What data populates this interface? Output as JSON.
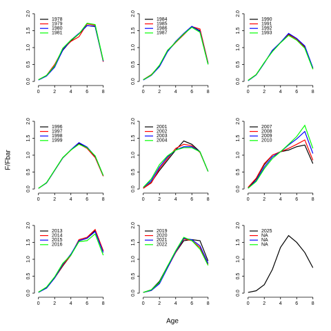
{
  "figure": {
    "xlabel": "Age",
    "ylabel": "F/Fbar"
  },
  "chart_data": [
    {
      "type": "line",
      "x": [
        0,
        1,
        2,
        3,
        4,
        5,
        6,
        7,
        8
      ],
      "xlim": [
        -0.32,
        8.32
      ],
      "ylim": [
        -0.08,
        2.08
      ],
      "xticks": [
        0,
        2,
        4,
        6,
        8
      ],
      "yticks": [
        {
          "value": 0,
          "label": "0.0"
        },
        {
          "value": 0.5,
          "label": "0.5"
        },
        {
          "value": 1,
          "label": "1.0"
        },
        {
          "value": 1.5,
          "label": "1.5"
        },
        {
          "value": 2,
          "label": "2.0"
        }
      ],
      "series": [
        {
          "name": "1978",
          "color": "#000000",
          "values": [
            0.05,
            0.17,
            0.45,
            0.92,
            1.2,
            1.4,
            1.65,
            1.62,
            0.6
          ]
        },
        {
          "name": "1979",
          "color": "#ff0000",
          "values": [
            0.05,
            0.18,
            0.5,
            0.95,
            1.18,
            1.32,
            1.7,
            1.66,
            0.58
          ]
        },
        {
          "name": "1980",
          "color": "#0000ff",
          "values": [
            0.04,
            0.16,
            0.42,
            0.93,
            1.22,
            1.42,
            1.65,
            1.63,
            0.6
          ]
        },
        {
          "name": "1981",
          "color": "#00ff00",
          "values": [
            0.05,
            0.18,
            0.46,
            0.98,
            1.22,
            1.4,
            1.72,
            1.68,
            0.62
          ]
        }
      ]
    },
    {
      "type": "line",
      "x": [
        0,
        1,
        2,
        3,
        4,
        5,
        6,
        7,
        8
      ],
      "xlim": [
        -0.32,
        8.32
      ],
      "ylim": [
        -0.08,
        2.08
      ],
      "xticks": [
        0,
        2,
        4,
        6,
        8
      ],
      "yticks": [
        {
          "value": 0,
          "label": "0.0"
        },
        {
          "value": 0.5,
          "label": "0.5"
        },
        {
          "value": 1,
          "label": "1.0"
        },
        {
          "value": 1.5,
          "label": "1.5"
        },
        {
          "value": 2,
          "label": "2.0"
        }
      ],
      "series": [
        {
          "name": "1984",
          "color": "#000000",
          "values": [
            0.05,
            0.2,
            0.45,
            0.9,
            1.15,
            1.4,
            1.62,
            1.5,
            0.52
          ]
        },
        {
          "name": "1985",
          "color": "#ff0000",
          "values": [
            0.05,
            0.2,
            0.47,
            0.92,
            1.15,
            1.38,
            1.62,
            1.55,
            0.55
          ]
        },
        {
          "name": "1986",
          "color": "#0000ff",
          "values": [
            0.04,
            0.18,
            0.44,
            0.88,
            1.18,
            1.42,
            1.63,
            1.48,
            0.52
          ]
        },
        {
          "name": "1987",
          "color": "#00ff00",
          "values": [
            0.05,
            0.19,
            0.48,
            0.92,
            1.16,
            1.4,
            1.6,
            1.45,
            0.5
          ]
        }
      ]
    },
    {
      "type": "line",
      "x": [
        0,
        1,
        2,
        3,
        4,
        5,
        6,
        7,
        8
      ],
      "xlim": [
        -0.32,
        8.32
      ],
      "ylim": [
        -0.08,
        2.08
      ],
      "xticks": [
        0,
        2,
        4,
        6,
        8
      ],
      "yticks": [
        {
          "value": 0,
          "label": "0.0"
        },
        {
          "value": 0.5,
          "label": "0.5"
        },
        {
          "value": 1,
          "label": "1.0"
        },
        {
          "value": 1.5,
          "label": "1.5"
        },
        {
          "value": 2,
          "label": "2.0"
        }
      ],
      "series": [
        {
          "name": "1990",
          "color": "#000000",
          "values": [
            0.03,
            0.2,
            0.55,
            0.9,
            1.15,
            1.4,
            1.25,
            1.02,
            0.38
          ]
        },
        {
          "name": "1991",
          "color": "#ff0000",
          "values": [
            0.03,
            0.2,
            0.55,
            0.9,
            1.15,
            1.38,
            1.25,
            1.0,
            0.38
          ]
        },
        {
          "name": "1992",
          "color": "#0000ff",
          "values": [
            0.02,
            0.19,
            0.54,
            0.92,
            1.15,
            1.42,
            1.27,
            1.05,
            0.4
          ]
        },
        {
          "name": "1993",
          "color": "#00ff00",
          "values": [
            0.03,
            0.2,
            0.56,
            0.88,
            1.14,
            1.36,
            1.22,
            0.98,
            0.36
          ]
        }
      ]
    },
    {
      "type": "line",
      "x": [
        0,
        1,
        2,
        3,
        4,
        5,
        6,
        7,
        8
      ],
      "xlim": [
        -0.32,
        8.32
      ],
      "ylim": [
        -0.08,
        2.08
      ],
      "xticks": [
        0,
        2,
        4,
        6,
        8
      ],
      "yticks": [
        {
          "value": 0,
          "label": "0.0"
        },
        {
          "value": 0.5,
          "label": "0.5"
        },
        {
          "value": 1,
          "label": "1.0"
        },
        {
          "value": 1.5,
          "label": "1.5"
        },
        {
          "value": 2,
          "label": "2.0"
        }
      ],
      "series": [
        {
          "name": "1996",
          "color": "#000000",
          "values": [
            0.02,
            0.18,
            0.55,
            0.92,
            1.15,
            1.35,
            1.22,
            0.95,
            0.38
          ]
        },
        {
          "name": "1997",
          "color": "#ff0000",
          "values": [
            0.02,
            0.18,
            0.55,
            0.92,
            1.15,
            1.33,
            1.2,
            0.93,
            0.38
          ]
        },
        {
          "name": "1998",
          "color": "#0000ff",
          "values": [
            0.02,
            0.18,
            0.55,
            0.92,
            1.16,
            1.37,
            1.24,
            0.97,
            0.4
          ]
        },
        {
          "name": "1999",
          "color": "#00ff00",
          "values": [
            0.02,
            0.19,
            0.56,
            0.93,
            1.15,
            1.32,
            1.22,
            0.98,
            0.4
          ]
        }
      ]
    },
    {
      "type": "line",
      "x": [
        0,
        1,
        2,
        3,
        4,
        5,
        6,
        7,
        8
      ],
      "xlim": [
        -0.32,
        8.32
      ],
      "ylim": [
        -0.08,
        2.08
      ],
      "xticks": [
        0,
        2,
        4,
        6,
        8
      ],
      "yticks": [
        {
          "value": 0,
          "label": "0.0"
        },
        {
          "value": 0.5,
          "label": "0.5"
        },
        {
          "value": 1,
          "label": "1.0"
        },
        {
          "value": 1.5,
          "label": "1.5"
        },
        {
          "value": 2,
          "label": "2.0"
        }
      ],
      "series": [
        {
          "name": "2001",
          "color": "#000000",
          "values": [
            0.02,
            0.2,
            0.55,
            0.85,
            1.15,
            1.42,
            1.32,
            1.1,
            0.52
          ]
        },
        {
          "name": "2002",
          "color": "#ff0000",
          "values": [
            0.02,
            0.18,
            0.6,
            0.9,
            1.2,
            1.32,
            1.28,
            1.08,
            0.52
          ]
        },
        {
          "name": "2003",
          "color": "#0000ff",
          "values": [
            0.05,
            0.25,
            0.65,
            0.95,
            1.15,
            1.25,
            1.25,
            1.1,
            0.52
          ]
        },
        {
          "name": "2004",
          "color": "#00ff00",
          "values": [
            0.05,
            0.3,
            0.72,
            0.98,
            1.15,
            1.22,
            1.22,
            1.1,
            0.52
          ]
        }
      ]
    },
    {
      "type": "line",
      "x": [
        0,
        1,
        2,
        3,
        4,
        5,
        6,
        7,
        8
      ],
      "xlim": [
        -0.32,
        8.32
      ],
      "ylim": [
        -0.08,
        2.08
      ],
      "xticks": [
        0,
        2,
        4,
        6,
        8
      ],
      "yticks": [
        {
          "value": 0,
          "label": "0.0"
        },
        {
          "value": 0.5,
          "label": "0.5"
        },
        {
          "value": 1,
          "label": "1.0"
        },
        {
          "value": 1.5,
          "label": "1.5"
        },
        {
          "value": 2,
          "label": "2.0"
        }
      ],
      "series": [
        {
          "name": "2007",
          "color": "#000000",
          "values": [
            0.03,
            0.3,
            0.72,
            1.0,
            1.1,
            1.15,
            1.25,
            1.3,
            0.75
          ]
        },
        {
          "name": "2008",
          "color": "#ff0000",
          "values": [
            0.05,
            0.32,
            0.75,
            1.0,
            1.1,
            1.2,
            1.32,
            1.45,
            0.85
          ]
        },
        {
          "name": "2009",
          "color": "#0000ff",
          "values": [
            0.02,
            0.25,
            0.65,
            0.95,
            1.1,
            1.3,
            1.48,
            1.7,
            1.05
          ]
        },
        {
          "name": "2010",
          "color": "#00ff00",
          "values": [
            0.02,
            0.22,
            0.6,
            0.9,
            1.1,
            1.32,
            1.55,
            1.88,
            1.2
          ]
        }
      ]
    },
    {
      "type": "line",
      "x": [
        0,
        1,
        2,
        3,
        4,
        5,
        6,
        7,
        8
      ],
      "xlim": [
        -0.32,
        8.32
      ],
      "ylim": [
        -0.08,
        2.08
      ],
      "xticks": [
        0,
        2,
        4,
        6,
        8
      ],
      "yticks": [
        {
          "value": 0,
          "label": "0.0"
        },
        {
          "value": 0.5,
          "label": "0.5"
        },
        {
          "value": 1,
          "label": "1.0"
        },
        {
          "value": 1.5,
          "label": "1.5"
        },
        {
          "value": 2,
          "label": "2.0"
        }
      ],
      "series": [
        {
          "name": "2013",
          "color": "#000000",
          "values": [
            0.03,
            0.15,
            0.45,
            0.8,
            1.12,
            1.55,
            1.62,
            1.85,
            1.25
          ]
        },
        {
          "name": "2014",
          "color": "#ff0000",
          "values": [
            0.03,
            0.17,
            0.45,
            0.82,
            1.12,
            1.58,
            1.65,
            1.88,
            1.25
          ]
        },
        {
          "name": "2015",
          "color": "#0000ff",
          "values": [
            0.02,
            0.15,
            0.45,
            0.85,
            1.15,
            1.55,
            1.62,
            1.82,
            1.2
          ]
        },
        {
          "name": "2016",
          "color": "#00ff00",
          "values": [
            0.03,
            0.18,
            0.48,
            0.88,
            1.12,
            1.52,
            1.55,
            1.75,
            1.12
          ]
        }
      ]
    },
    {
      "type": "line",
      "x": [
        0,
        1,
        2,
        3,
        4,
        5,
        6,
        7,
        8
      ],
      "xlim": [
        -0.32,
        8.32
      ],
      "ylim": [
        -0.08,
        2.08
      ],
      "xticks": [
        0,
        2,
        4,
        6,
        8
      ],
      "yticks": [
        {
          "value": 0,
          "label": "0.0"
        },
        {
          "value": 0.5,
          "label": "0.5"
        },
        {
          "value": 1,
          "label": "1.0"
        },
        {
          "value": 1.5,
          "label": "1.5"
        },
        {
          "value": 2,
          "label": "2.0"
        }
      ],
      "series": [
        {
          "name": "2019",
          "color": "#000000",
          "values": [
            0.02,
            0.1,
            0.35,
            0.8,
            1.2,
            1.55,
            1.58,
            1.55,
            0.95
          ]
        },
        {
          "name": "2020",
          "color": "#ff0000",
          "values": [
            0.02,
            0.08,
            0.3,
            0.75,
            1.2,
            1.6,
            1.55,
            1.35,
            0.85
          ]
        },
        {
          "name": "2021",
          "color": "#0000ff",
          "values": [
            0.02,
            0.08,
            0.28,
            0.75,
            1.22,
            1.62,
            1.58,
            1.4,
            0.88
          ]
        },
        {
          "name": "2022",
          "color": "#00ff00",
          "values": [
            0.02,
            0.1,
            0.32,
            0.8,
            1.25,
            1.65,
            1.55,
            1.3,
            0.82
          ]
        }
      ]
    },
    {
      "type": "line",
      "x": [
        0,
        1,
        2,
        3,
        4,
        5,
        6,
        7,
        8
      ],
      "xlim": [
        -0.32,
        8.32
      ],
      "ylim": [
        -0.08,
        2.08
      ],
      "xticks": [
        0,
        2,
        4,
        6,
        8
      ],
      "yticks": [
        {
          "value": 0,
          "label": "0.0"
        },
        {
          "value": 0.5,
          "label": "0.5"
        },
        {
          "value": 1,
          "label": "1.0"
        },
        {
          "value": 1.5,
          "label": "1.5"
        },
        {
          "value": 2,
          "label": "2.0"
        }
      ],
      "series": [
        {
          "name": "2025",
          "color": "#000000",
          "values": [
            0.02,
            0.07,
            0.25,
            0.7,
            1.35,
            1.7,
            1.5,
            1.2,
            0.75
          ]
        },
        {
          "name": "NA",
          "color": "#ff0000",
          "values": [
            null,
            null,
            null,
            null,
            null,
            null,
            null,
            null,
            null
          ]
        },
        {
          "name": "NA",
          "color": "#0000ff",
          "values": [
            null,
            null,
            null,
            null,
            null,
            null,
            null,
            null,
            null
          ]
        },
        {
          "name": "NA",
          "color": "#00ff00",
          "values": [
            null,
            null,
            null,
            null,
            null,
            null,
            null,
            null,
            null
          ]
        }
      ]
    }
  ]
}
